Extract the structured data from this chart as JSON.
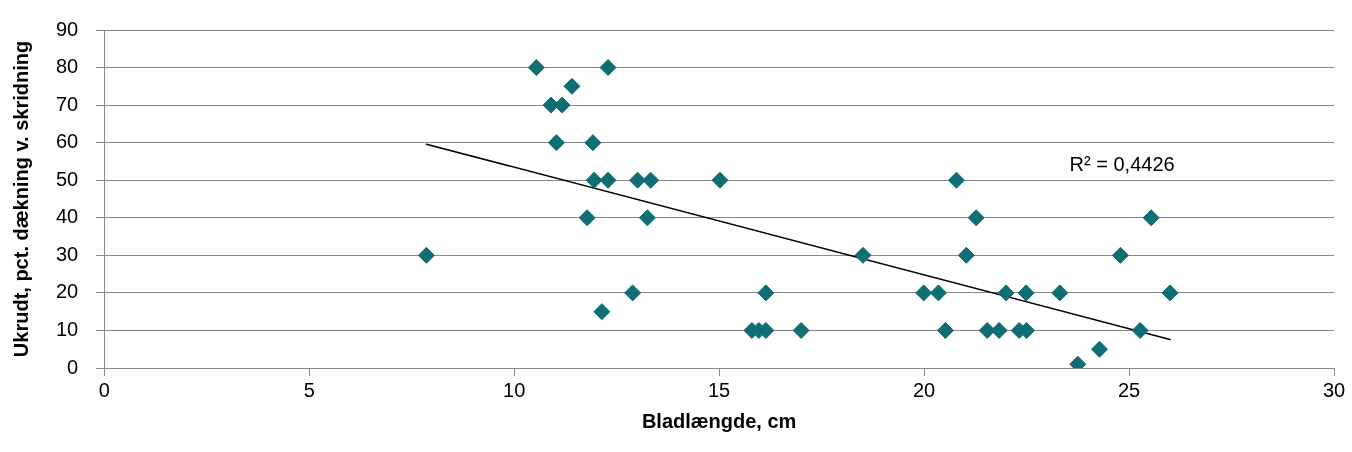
{
  "chart_data": {
    "type": "scatter",
    "xlabel": "Bladlængde, cm",
    "ylabel": "Ukrudt, pct. dækning v. skridning",
    "xlim": [
      0,
      30
    ],
    "xticks": [
      0,
      5,
      10,
      15,
      20,
      25,
      30
    ],
    "ylim": [
      0,
      90
    ],
    "yticks": [
      0,
      10,
      20,
      30,
      40,
      50,
      60,
      70,
      80,
      90
    ],
    "grid": "y",
    "legend": false,
    "series": [
      {
        "type": "scatter",
        "marker": "diamond",
        "color": "#0f6e73",
        "x": [
          10.54,
          10.9,
          11.17,
          11.41,
          11.03,
          11.92,
          11.95,
          12.29,
          12.29,
          11.78,
          12.14,
          12.89,
          13.01,
          13.33,
          13.25,
          15.02,
          7.86,
          15.8,
          15.97,
          16.14,
          16.14,
          17.0,
          18.51,
          19.99,
          20.35,
          20.52,
          20.79,
          21.27,
          21.03,
          21.54,
          21.83,
          22.0,
          22.32,
          22.49,
          22.5,
          23.31,
          23.75,
          24.28,
          24.79,
          25.54,
          25.27,
          26.0
        ],
        "values": [
          80,
          70,
          70,
          75,
          60,
          60,
          50,
          50,
          80,
          40,
          15,
          20,
          50,
          50,
          40,
          50,
          30,
          10,
          10,
          10,
          20,
          10,
          30,
          20,
          20,
          10,
          50,
          40,
          30,
          10,
          10,
          20,
          10,
          20,
          10,
          20,
          1,
          5,
          30,
          40,
          10,
          20
        ]
      },
      {
        "type": "line",
        "marker": "none",
        "color": "#000000",
        "x": [
          7.86,
          26.0
        ],
        "values": [
          59.6,
          7.6
        ]
      }
    ],
    "annotations": [
      "R² = 0,4426"
    ]
  }
}
